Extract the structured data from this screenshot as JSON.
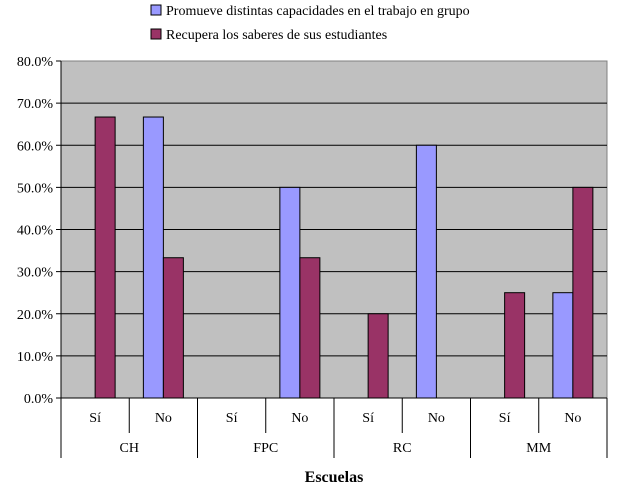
{
  "chart_data": {
    "type": "bar",
    "groups": [
      "CH",
      "FPC",
      "RC",
      "MM"
    ],
    "subcategories": [
      "Sí",
      "No"
    ],
    "categories": [
      "CH Sí",
      "CH No",
      "FPC Sí",
      "FPC No",
      "RC Sí",
      "RC No",
      "MM Sí",
      "MM No"
    ],
    "series": [
      {
        "name": "Promueve distintas capacidades en el trabajo en grupo",
        "color": "#9999ff",
        "values": [
          0,
          66.7,
          0,
          50.0,
          0,
          60.0,
          0,
          25.0
        ]
      },
      {
        "name": "Recupera los saberes de sus estudiantes",
        "color": "#993366",
        "values": [
          66.7,
          33.3,
          0,
          33.3,
          20.0,
          0,
          25.0,
          50.0
        ]
      }
    ],
    "xlabel": "Escuelas",
    "ylabel": "",
    "ylim": [
      0,
      80
    ],
    "yticks": [
      "0.0%",
      "10.0%",
      "20.0%",
      "30.0%",
      "40.0%",
      "50.0%",
      "60.0%",
      "70.0%",
      "80.0%"
    ],
    "grid": true,
    "legend_position": "top",
    "plot_background": "#c0c0c0"
  }
}
